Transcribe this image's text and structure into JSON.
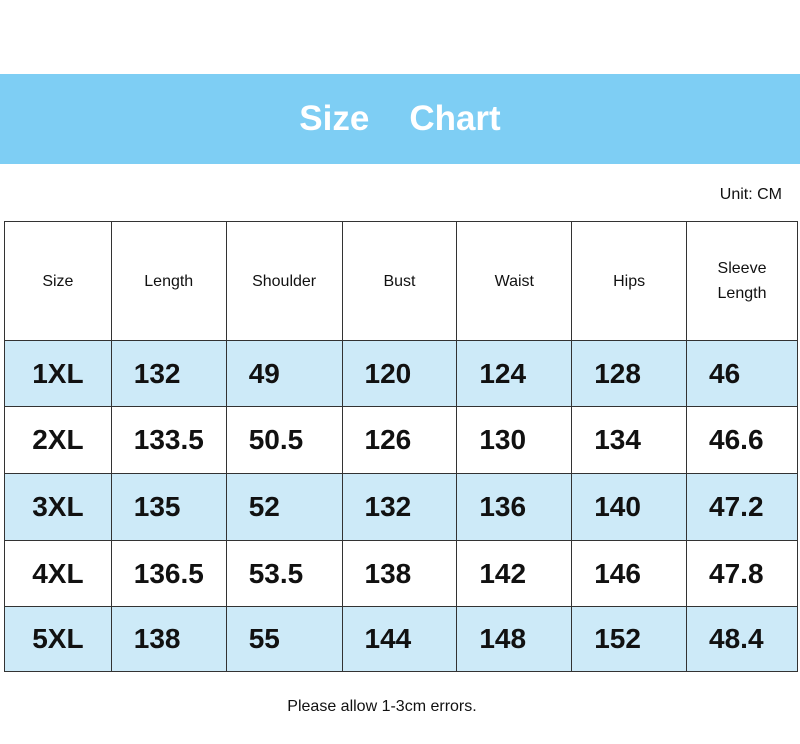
{
  "title": [
    "Size",
    "Chart"
  ],
  "unit": "Unit: CM",
  "headers": [
    "Size",
    "Length",
    "Shoulder",
    "Bust",
    "Waist",
    "Hips",
    "Sleeve Length"
  ],
  "rows": [
    [
      "1XL",
      "132",
      "49",
      "120",
      "124",
      "128",
      "46"
    ],
    [
      "2XL",
      "133.5",
      "50.5",
      "126",
      "130",
      "134",
      "46.6"
    ],
    [
      "3XL",
      "135",
      "52",
      "132",
      "136",
      "140",
      "47.2"
    ],
    [
      "4XL",
      "136.5",
      "53.5",
      "138",
      "142",
      "146",
      "47.8"
    ],
    [
      "5XL",
      "138",
      "55",
      "144",
      "148",
      "152",
      "48.4"
    ]
  ],
  "note": "Please allow 1-3cm errors.",
  "colors": {
    "banner": "#7ecef4",
    "row_highlight": "#cdeaf8"
  }
}
